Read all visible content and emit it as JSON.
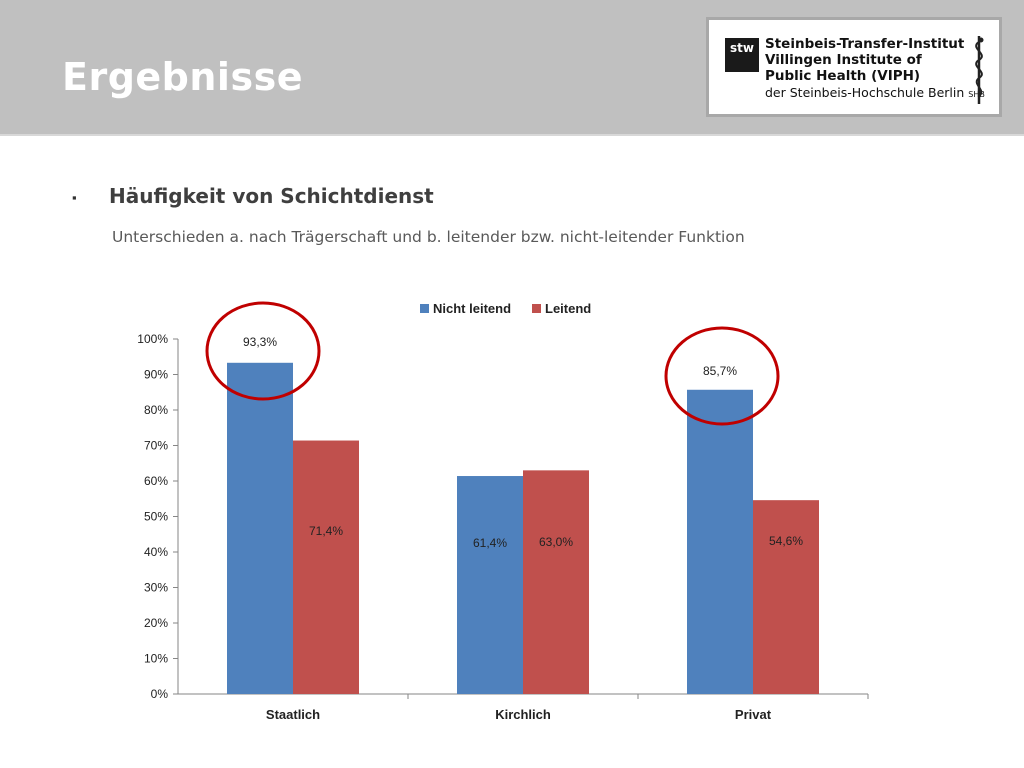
{
  "header": {
    "title": "Ergebnisse",
    "logo": {
      "mark_line1": "stw",
      "line1": "Steinbeis-Transfer-Institut",
      "line2": "Villingen Institute of",
      "line3": "Public Health (VIPH)",
      "line4": "der Steinbeis-Hochschule Berlin",
      "line4_suffix": "SHB"
    }
  },
  "content": {
    "bullet_icon": "square-bullet",
    "heading": "Häufigkeit von Schichtdienst",
    "subheading": "Unterschieden a. nach Trägerschaft und b. leitender bzw. nicht-leitender Funktion"
  },
  "colors": {
    "nicht_leitend": "#4f81bd",
    "leitend": "#c0504d",
    "highlight_circle": "#c00000"
  },
  "chart_data": {
    "type": "bar",
    "categories": [
      "Staatlich",
      "Kirchlich",
      "Privat"
    ],
    "series": [
      {
        "name": "Nicht leitend",
        "values": [
          93.3,
          61.4,
          85.7
        ],
        "labels": [
          "93,3%",
          "61,4%",
          "85,7%"
        ]
      },
      {
        "name": "Leitend",
        "values": [
          71.4,
          63.0,
          54.6
        ],
        "labels": [
          "71,4%",
          "63,0%",
          "54,6%"
        ]
      }
    ],
    "ylim": [
      0,
      100
    ],
    "yticks": [
      "0%",
      "10%",
      "20%",
      "30%",
      "40%",
      "50%",
      "60%",
      "70%",
      "80%",
      "90%",
      "100%"
    ],
    "legend_position": "top",
    "grid": false,
    "highlighted": [
      "Staatlich - Nicht leitend",
      "Privat - Nicht leitend"
    ]
  }
}
